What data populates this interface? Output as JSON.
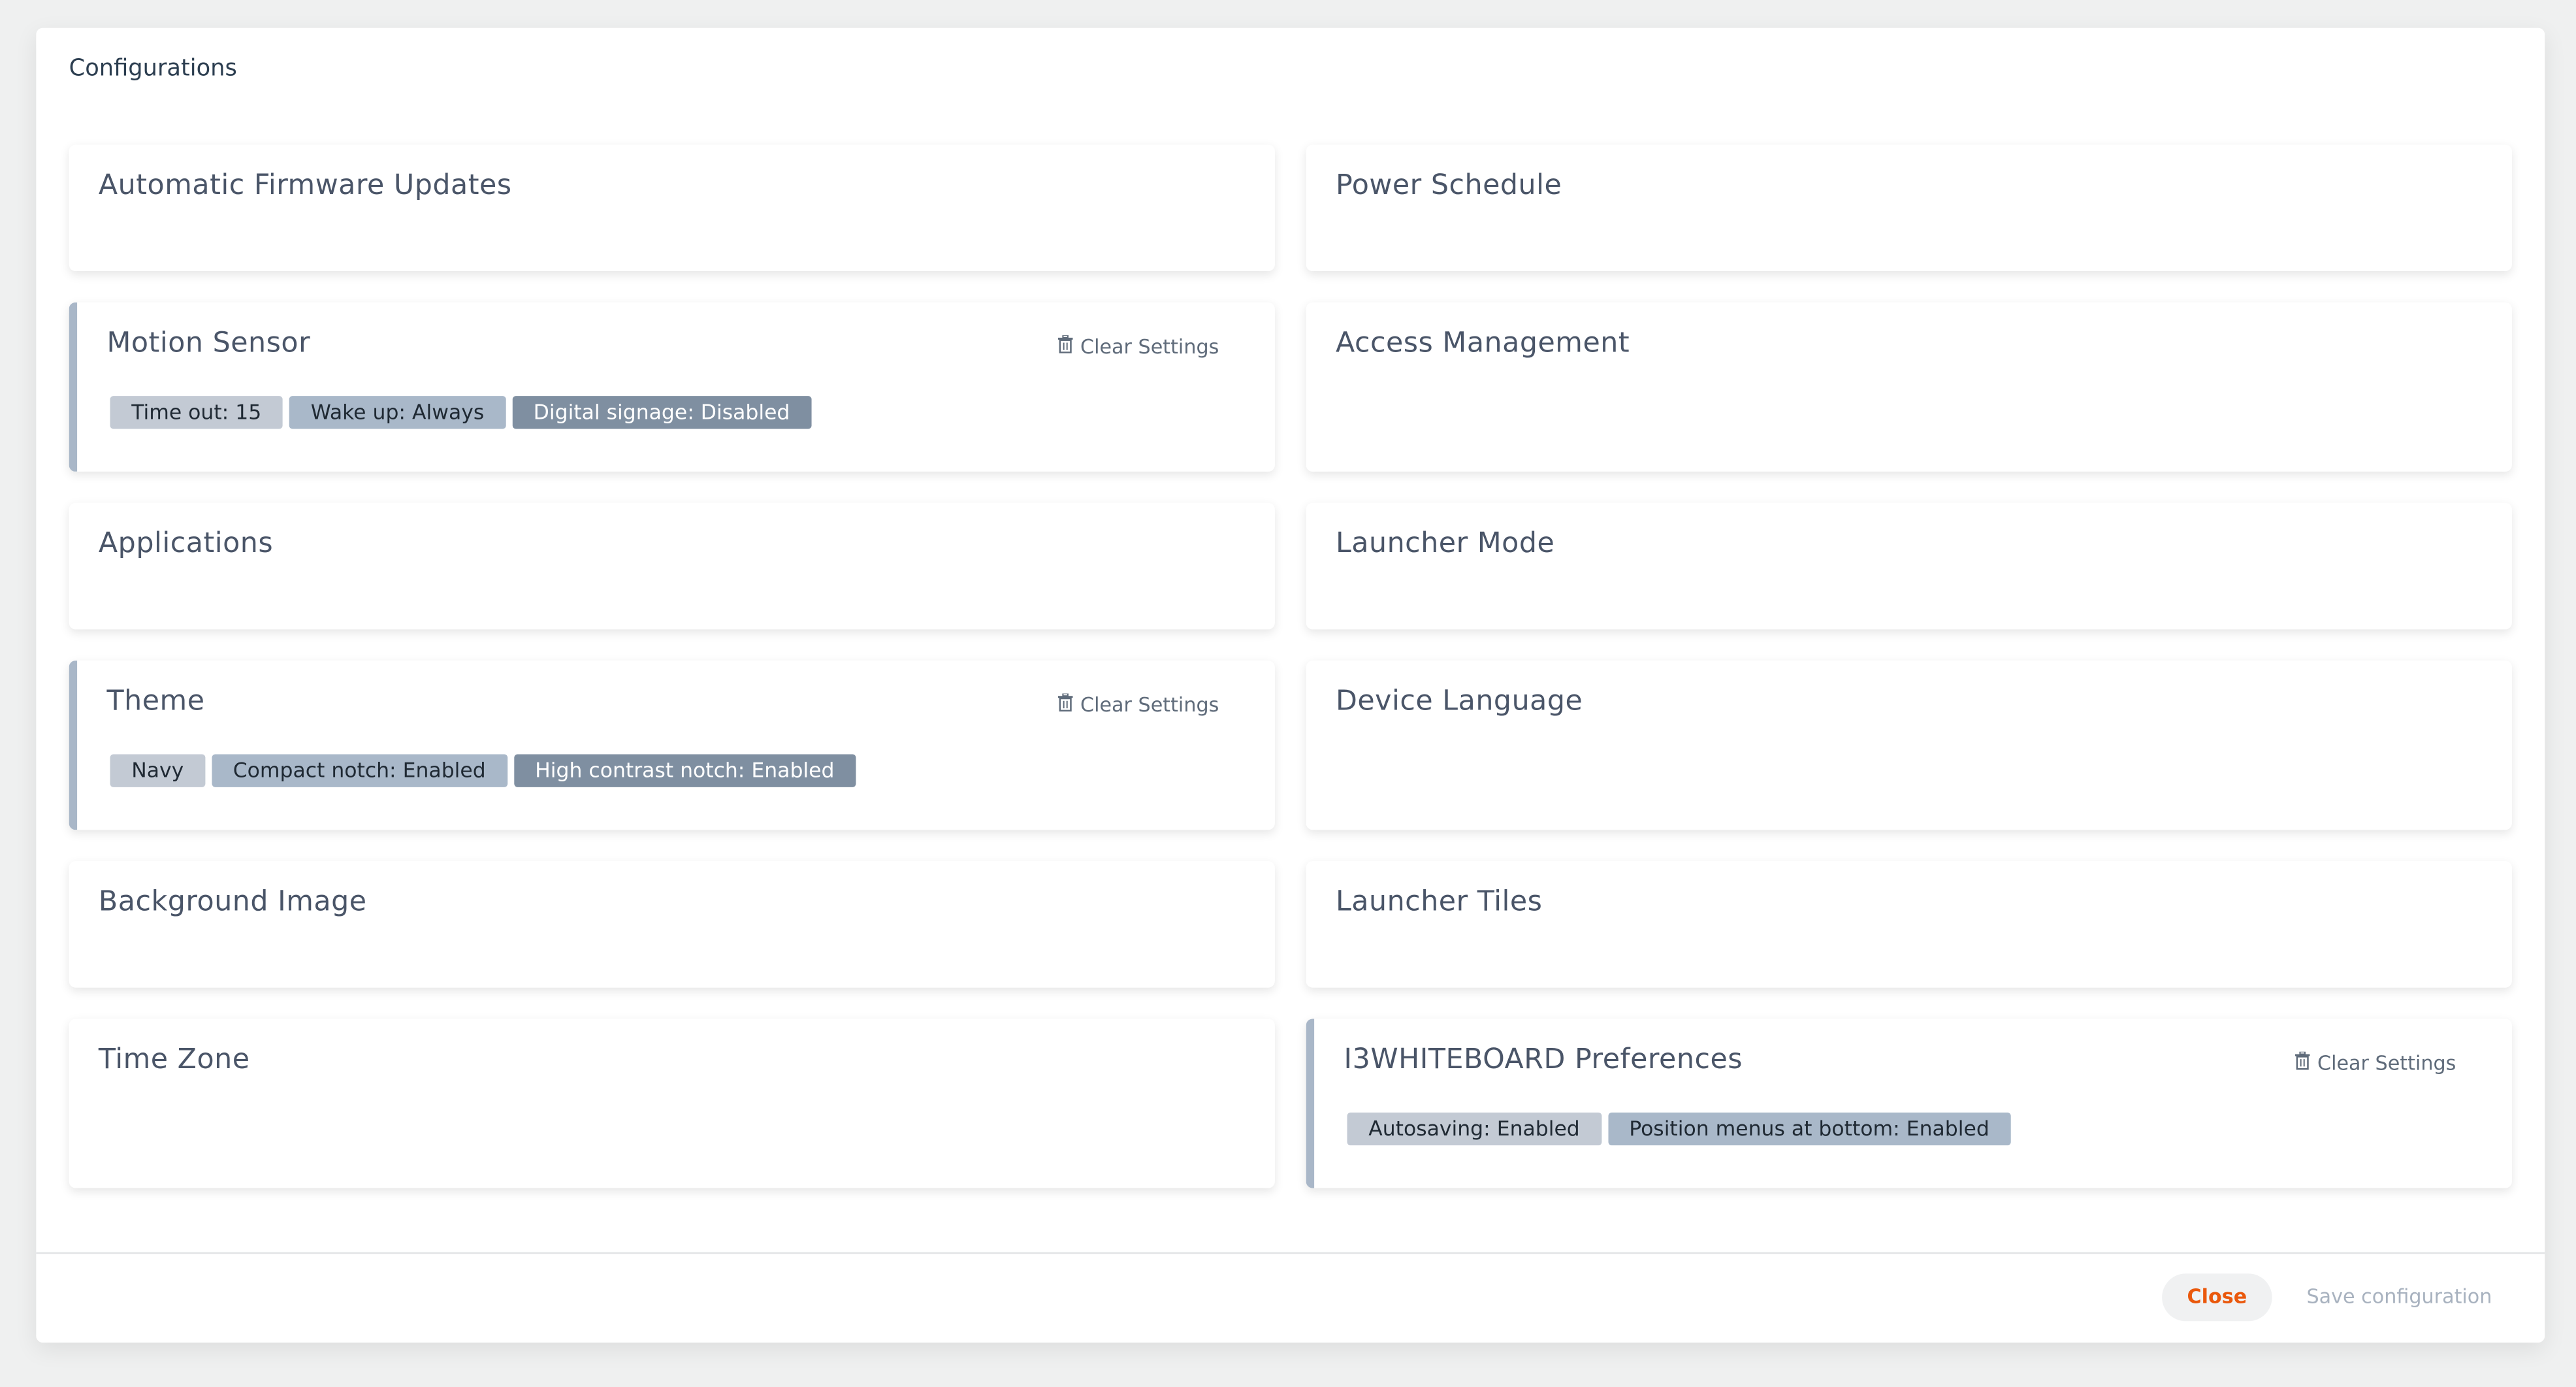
{
  "dialog": {
    "title": "Configurations"
  },
  "cards": [
    {
      "title": "Automatic Firmware Updates"
    },
    {
      "title": "Power Schedule"
    },
    {
      "title": "Motion Sensor",
      "clear_label": "Clear Settings",
      "chips": [
        "Time out: 15",
        "Wake up: Always",
        "Digital signage: Disabled"
      ]
    },
    {
      "title": "Access Management"
    },
    {
      "title": "Applications"
    },
    {
      "title": "Launcher Mode"
    },
    {
      "title": "Theme",
      "clear_label": "Clear Settings",
      "chips": [
        "Navy",
        "Compact notch: Enabled",
        "High contrast notch: Enabled"
      ]
    },
    {
      "title": "Device Language"
    },
    {
      "title": "Background Image"
    },
    {
      "title": "Launcher Tiles"
    },
    {
      "title": "Time Zone"
    },
    {
      "title": "I3WHITEBOARD Preferences",
      "clear_label": "Clear Settings",
      "chips": [
        "Autosaving: Enabled",
        "Position menus at bottom: Enabled"
      ]
    }
  ],
  "footer": {
    "close_label": "Close",
    "save_label": "Save configuration"
  },
  "colors": {
    "accent": "#ea580c",
    "chip_light": "#c3cad4",
    "chip_mid": "#a9b8c9",
    "chip_dark": "#7f8fa1"
  },
  "icons": {
    "clear": "trash-icon"
  }
}
